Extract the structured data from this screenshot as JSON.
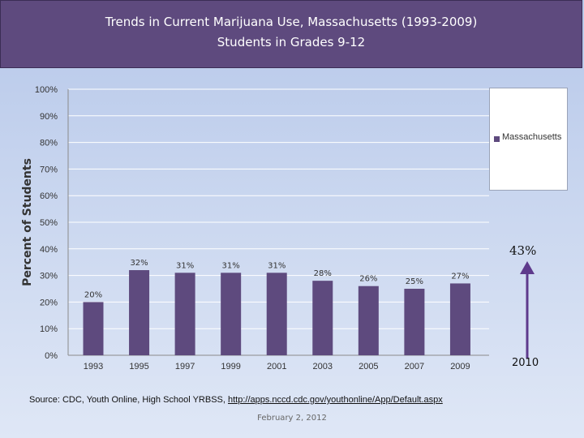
{
  "header": {
    "title_line1": "Trends in Current Marijuana Use, Massachusetts (1993-2009)",
    "title_line2": "Students in Grades 9-12"
  },
  "chart_data": {
    "type": "bar",
    "categories": [
      "1993",
      "1995",
      "1997",
      "1999",
      "2001",
      "2003",
      "2005",
      "2007",
      "2009"
    ],
    "series": [
      {
        "name": "Massachusetts",
        "values": [
          20,
          32,
          31,
          31,
          31,
          28,
          26,
          25,
          27
        ]
      }
    ],
    "data_labels": [
      "20%",
      "32%",
      "31%",
      "31%",
      "31%",
      "28%",
      "26%",
      "25%",
      "27%"
    ],
    "ylabel": "Percent of Students",
    "xlabel": "",
    "ylim": [
      0,
      100
    ],
    "yticks": [
      "0%",
      "10%",
      "20%",
      "30%",
      "40%",
      "50%",
      "60%",
      "70%",
      "80%",
      "90%",
      "100%"
    ],
    "grid": true,
    "legend_position": "right",
    "bar_color": "#5e4a7e"
  },
  "annotation": {
    "value": "43%",
    "year": "2010",
    "arrow_color": "#5e3a8c"
  },
  "source": {
    "prefix": "Source: CDC, Youth Online, High School YRBSS, ",
    "link": "http://apps.nccd.cdc.gov/youthonline/App/Default.aspx"
  },
  "footer": {
    "date": "February 2, 2012"
  }
}
